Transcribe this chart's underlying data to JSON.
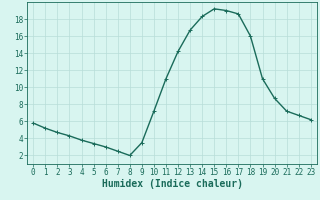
{
  "x": [
    0,
    1,
    2,
    3,
    4,
    5,
    6,
    7,
    8,
    9,
    10,
    11,
    12,
    13,
    14,
    15,
    16,
    17,
    18,
    19,
    20,
    21,
    22,
    23
  ],
  "y": [
    5.8,
    5.2,
    4.7,
    4.3,
    3.8,
    3.4,
    3.0,
    2.5,
    2.0,
    3.5,
    7.2,
    11.0,
    14.2,
    16.7,
    18.3,
    19.2,
    19.0,
    18.6,
    16.0,
    11.0,
    8.7,
    7.2,
    6.7,
    6.2
  ],
  "xlabel": "Humidex (Indice chaleur)",
  "ylim": [
    1,
    20
  ],
  "xlim": [
    -0.5,
    23.5
  ],
  "bg_color": "#d8f5f0",
  "line_color": "#1a6b5a",
  "grid_color": "#b8ddd8",
  "tick_color": "#1a6b5a",
  "border_color": "#1a6b5a",
  "yticks": [
    2,
    4,
    6,
    8,
    10,
    12,
    14,
    16,
    18
  ],
  "xticks": [
    0,
    1,
    2,
    3,
    4,
    5,
    6,
    7,
    8,
    9,
    10,
    11,
    12,
    13,
    14,
    15,
    16,
    17,
    18,
    19,
    20,
    21,
    22,
    23
  ],
  "marker": "+",
  "markersize": 3,
  "linewidth": 1.0,
  "xlabel_fontsize": 7,
  "tick_fontsize": 5.5
}
